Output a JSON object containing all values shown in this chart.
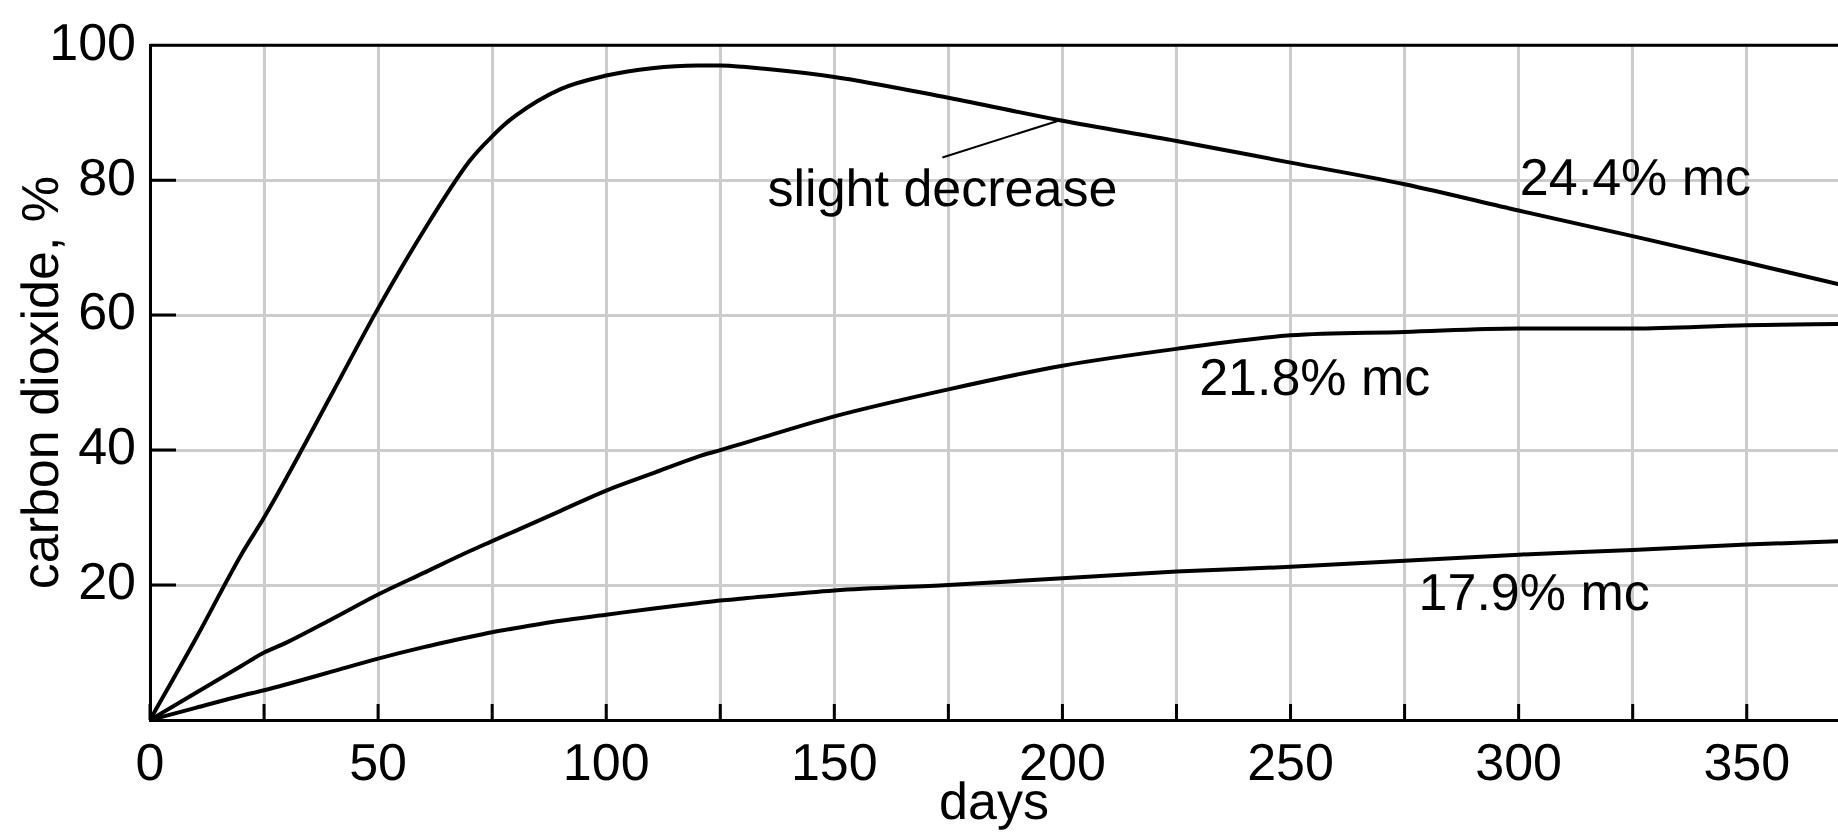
{
  "chart_data": {
    "type": "line",
    "xlabel": "days",
    "ylabel": "carbon dioxide, %",
    "annotations": [
      {
        "text": "slight decrease",
        "x": 200,
        "y": 89
      }
    ],
    "x": [
      0,
      10,
      20,
      25,
      30,
      40,
      50,
      60,
      70,
      75,
      80,
      90,
      100,
      110,
      120,
      125,
      130,
      150,
      175,
      200,
      225,
      250,
      275,
      300,
      325,
      350,
      370
    ],
    "series": [
      {
        "name": "24.4% mc",
        "color": "#000000",
        "values": [
          0,
          12,
          24.5,
          30,
          36,
          48.5,
          61,
          72.5,
          82.8,
          86.5,
          89.5,
          93.5,
          95.5,
          96.6,
          97,
          97,
          96.8,
          95.3,
          92.2,
          88.8,
          85.8,
          82.6,
          79.4,
          75.5,
          71.7,
          67.8,
          64.6
        ]
      },
      {
        "name": "21.8% mc",
        "color": "#000000",
        "values": [
          0,
          4,
          8,
          10,
          11.5,
          15,
          18.6,
          21.8,
          25,
          26.5,
          28,
          31,
          34,
          36.5,
          39,
          40,
          41,
          45,
          49,
          52.5,
          55,
          57,
          57.5,
          58,
          58,
          58.5,
          58.7
        ]
      },
      {
        "name": "17.9% mc",
        "color": "#000000",
        "values": [
          0,
          1.8,
          3.6,
          4.4,
          5.3,
          7.2,
          9.1,
          10.8,
          12.3,
          13,
          13.6,
          14.7,
          15.6,
          16.5,
          17.3,
          17.7,
          18,
          19.2,
          20,
          21,
          22,
          22.7,
          23.6,
          24.5,
          25.2,
          26,
          26.5
        ]
      }
    ],
    "xlim": [
      0,
      370
    ],
    "ylim": [
      0,
      100
    ],
    "xticks": [
      0,
      {
        "value": 25,
        "label": null
      },
      50,
      {
        "value": 75,
        "label": null
      },
      100,
      {
        "value": 125,
        "label": null
      },
      150,
      {
        "value": 175,
        "label": null
      },
      200,
      {
        "value": 225,
        "label": null
      },
      250,
      {
        "value": 275,
        "label": null
      },
      300,
      {
        "value": 325,
        "label": null
      },
      350
    ],
    "yticks": [
      20,
      40,
      60,
      80,
      100
    ],
    "grid": true
  }
}
